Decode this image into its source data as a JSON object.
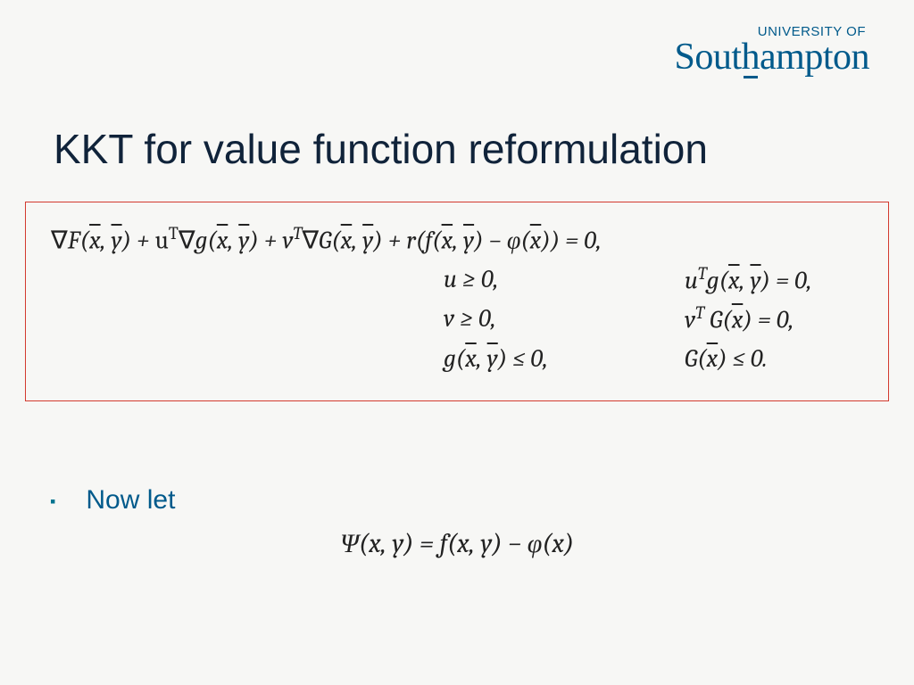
{
  "logo": {
    "top_text": "UNIVERSITY OF",
    "main_text": "Southampton",
    "color": "#005a8b"
  },
  "title": {
    "text": "KKT for value function reformulation",
    "color": "#10233a",
    "fontsize": 46
  },
  "equation_box": {
    "border_color": "#d33a2f",
    "lines": {
      "line1": "∇F(x̄, ȳ) + uᵀ∇g(x̄, ȳ) + vᵀ∇G(x̄, ȳ) + r(f(x̄, ȳ) − φ(x̄)) = 0,",
      "row2_left": "u ≥ 0,",
      "row2_right": "uᵀg(x̄, ȳ) = 0,",
      "row3_left": "v ≥ 0,",
      "row3_right": "vᵀ G(x̄) = 0,",
      "row4_left": "g(x̄, ȳ) ≤ 0,",
      "row4_right": "G(x̄) ≤ 0."
    },
    "fontsize": 28
  },
  "bullet": {
    "marker": "▪",
    "text": "Now let",
    "text_color": "#005a8b",
    "marker_color": "#00738f",
    "fontsize": 30
  },
  "psi_equation": {
    "text": "Ψ(x, y) = f(x, y) − φ(x)",
    "fontsize": 30
  },
  "background_color": "#f7f7f5"
}
